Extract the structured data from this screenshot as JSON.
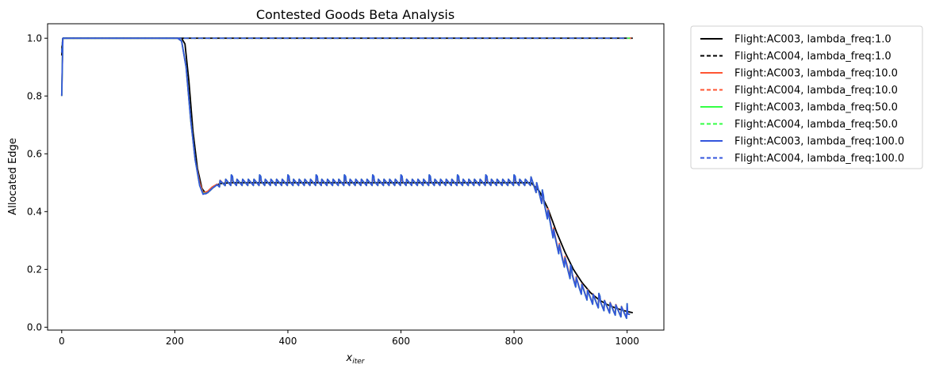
{
  "chart_data": {
    "type": "line",
    "title": "Contested Goods Beta Analysis",
    "xlabel_main": "x",
    "xlabel_sub": "iter",
    "ylabel": "Allocated Edge",
    "xlim": [
      -25,
      1065
    ],
    "ylim": [
      -0.01,
      1.05
    ],
    "xticks": [
      0,
      200,
      400,
      600,
      800,
      1000
    ],
    "xtick_labels": [
      "0",
      "200",
      "400",
      "600",
      "800",
      "1000"
    ],
    "yticks": [
      0.0,
      0.2,
      0.4,
      0.6,
      0.8,
      1.0
    ],
    "ytick_labels": [
      "0.0",
      "0.2",
      "0.4",
      "0.6",
      "0.8",
      "1.0"
    ],
    "grid": false,
    "legend_position": "outside-right",
    "series": [
      {
        "name": "Flight:AC003, lambda_freq:1.0",
        "color": "#000000",
        "dash": "solid",
        "lambda_freq": 1,
        "points": [
          [
            0,
            0.94
          ],
          [
            2,
            1.0
          ],
          [
            10,
            1.0
          ],
          [
            212,
            1.0
          ],
          [
            218,
            0.98
          ],
          [
            225,
            0.85
          ],
          [
            232,
            0.68
          ],
          [
            240,
            0.55
          ],
          [
            248,
            0.48
          ],
          [
            255,
            0.462
          ],
          [
            262,
            0.472
          ],
          [
            270,
            0.488
          ],
          [
            280,
            0.497
          ],
          [
            300,
            0.5
          ],
          [
            830,
            0.5
          ],
          [
            845,
            0.47
          ],
          [
            860,
            0.41
          ],
          [
            875,
            0.33
          ],
          [
            890,
            0.26
          ],
          [
            905,
            0.2
          ],
          [
            920,
            0.155
          ],
          [
            935,
            0.12
          ],
          [
            950,
            0.095
          ],
          [
            965,
            0.078
          ],
          [
            980,
            0.066
          ],
          [
            995,
            0.057
          ],
          [
            1010,
            0.05
          ]
        ]
      },
      {
        "name": "Flight:AC004, lambda_freq:1.0",
        "color": "#000000",
        "dash": "dashed",
        "lambda_freq": 1,
        "points": [
          [
            0,
            0.96
          ],
          [
            2,
            1.0
          ],
          [
            1010,
            1.0
          ]
        ]
      },
      {
        "name": "Flight:AC003, lambda_freq:10.0",
        "color": "#ff5533",
        "dash": "solid",
        "lambda_freq": 10,
        "points": [
          [
            0,
            0.8
          ],
          [
            2,
            1.0
          ],
          [
            10,
            1.0
          ],
          [
            205,
            1.0
          ],
          [
            212,
            0.99
          ],
          [
            220,
            0.9
          ],
          [
            228,
            0.72
          ],
          [
            236,
            0.58
          ],
          [
            244,
            0.5
          ],
          [
            250,
            0.465
          ],
          [
            258,
            0.47
          ],
          [
            266,
            0.485
          ],
          [
            275,
            0.495
          ],
          [
            290,
            0.5
          ],
          [
            830,
            0.5
          ],
          [
            840,
            0.48
          ],
          [
            850,
            0.44
          ],
          [
            860,
            0.39
          ],
          [
            872,
            0.31
          ],
          [
            885,
            0.245
          ],
          [
            900,
            0.185
          ],
          [
            915,
            0.14
          ],
          [
            930,
            0.11
          ],
          [
            945,
            0.088
          ],
          [
            960,
            0.073
          ],
          [
            975,
            0.062
          ],
          [
            990,
            0.052
          ],
          [
            1005,
            0.045
          ]
        ]
      },
      {
        "name": "Flight:AC004, lambda_freq:10.0",
        "color": "#ff5533",
        "dash": "dashed",
        "lambda_freq": 10,
        "points": [
          [
            0,
            0.95
          ],
          [
            2,
            1.0
          ],
          [
            1010,
            1.0
          ]
        ]
      },
      {
        "name": "Flight:AC003, lambda_freq:50.0",
        "color": "#33ff44",
        "dash": "solid",
        "lambda_freq": 50,
        "points": [
          [
            0,
            0.8
          ],
          [
            2,
            1.0
          ],
          [
            10,
            1.0
          ],
          [
            205,
            1.0
          ],
          [
            212,
            0.99
          ],
          [
            220,
            0.9
          ],
          [
            228,
            0.72
          ],
          [
            236,
            0.58
          ],
          [
            244,
            0.49
          ],
          [
            250,
            0.462
          ],
          [
            258,
            0.465
          ],
          [
            266,
            0.48
          ],
          [
            275,
            0.493
          ],
          [
            290,
            0.5
          ],
          [
            830,
            0.5
          ],
          [
            840,
            0.48
          ],
          [
            850,
            0.44
          ],
          [
            860,
            0.385
          ],
          [
            872,
            0.305
          ],
          [
            885,
            0.24
          ],
          [
            900,
            0.18
          ],
          [
            915,
            0.138
          ],
          [
            930,
            0.108
          ],
          [
            945,
            0.087
          ],
          [
            960,
            0.072
          ],
          [
            975,
            0.06
          ],
          [
            990,
            0.051
          ],
          [
            1005,
            0.044
          ]
        ]
      },
      {
        "name": "Flight:AC004, lambda_freq:50.0",
        "color": "#33ff44",
        "dash": "dashed",
        "lambda_freq": 50,
        "points": [
          [
            0,
            0.95
          ],
          [
            2,
            1.0
          ],
          [
            1005,
            1.0
          ]
        ]
      },
      {
        "name": "Flight:AC003, lambda_freq:100.0",
        "color": "#3355dd",
        "dash": "solid",
        "lambda_freq": 100,
        "points": [
          [
            0,
            0.8
          ],
          [
            2,
            1.0
          ],
          [
            10,
            1.0
          ],
          [
            205,
            1.0
          ],
          [
            212,
            0.99
          ],
          [
            220,
            0.9
          ],
          [
            228,
            0.72
          ],
          [
            236,
            0.58
          ],
          [
            244,
            0.49
          ],
          [
            250,
            0.46
          ],
          [
            258,
            0.465
          ],
          [
            266,
            0.48
          ],
          [
            275,
            0.493
          ],
          [
            290,
            0.5
          ],
          [
            830,
            0.5
          ],
          [
            840,
            0.48
          ],
          [
            850,
            0.44
          ],
          [
            860,
            0.385
          ],
          [
            872,
            0.305
          ],
          [
            885,
            0.24
          ],
          [
            900,
            0.18
          ],
          [
            915,
            0.138
          ],
          [
            930,
            0.108
          ],
          [
            945,
            0.087
          ],
          [
            960,
            0.072
          ],
          [
            975,
            0.06
          ],
          [
            990,
            0.051
          ],
          [
            1005,
            0.044
          ]
        ]
      },
      {
        "name": "Flight:AC004, lambda_freq:100.0",
        "color": "#3355dd",
        "dash": "dashed",
        "lambda_freq": 100,
        "points": [
          [
            0,
            0.95
          ],
          [
            2,
            1.0
          ],
          [
            1000,
            1.0
          ]
        ]
      }
    ]
  }
}
